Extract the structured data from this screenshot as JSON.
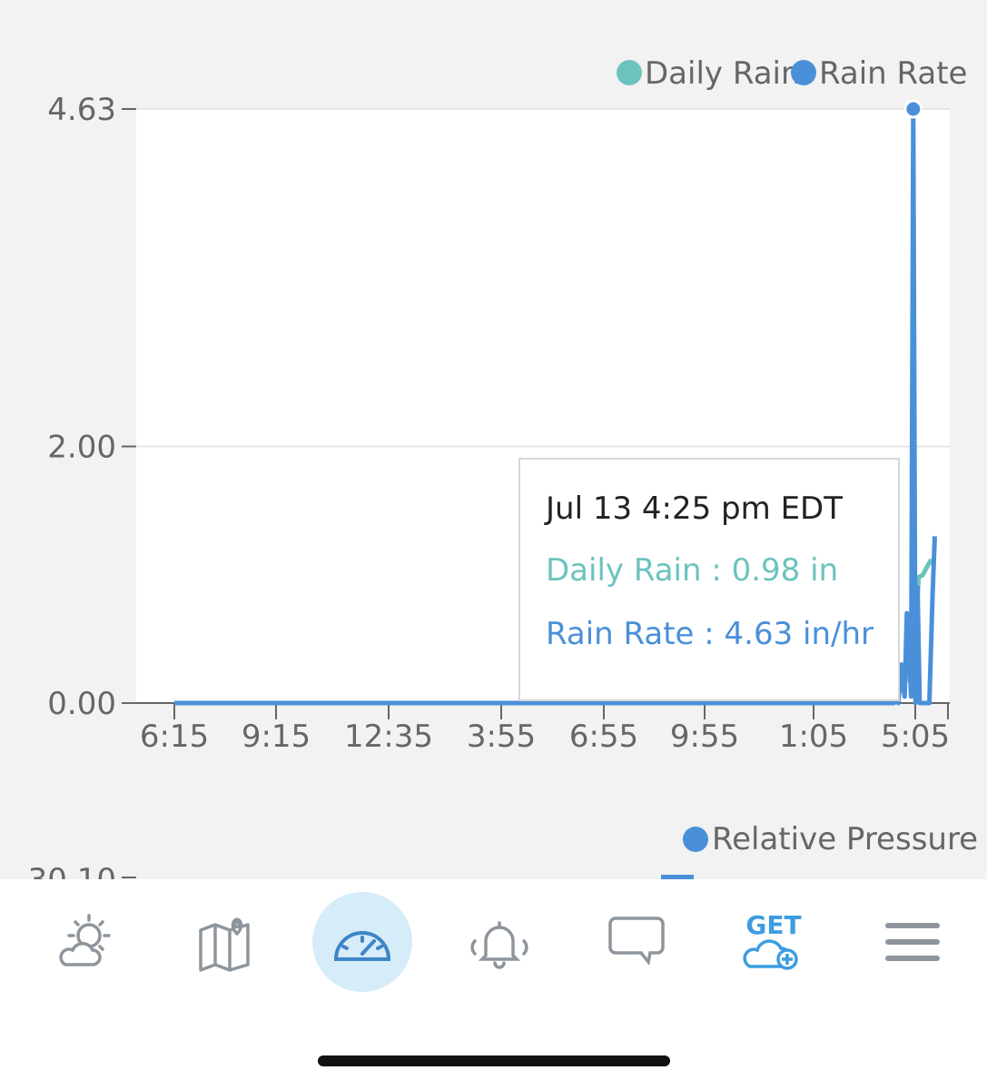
{
  "chart_data": [
    {
      "type": "line",
      "title": "",
      "legend": {
        "placement": "top-right",
        "items": [
          {
            "name": "Daily Rain",
            "color": "#6cc3bd"
          },
          {
            "name": "Rain Rate",
            "color": "#4a90d9"
          }
        ]
      },
      "y_ticks": [
        "4.63",
        "2.00",
        "0.00"
      ],
      "ylim": [
        0,
        4.63
      ],
      "x_ticks": [
        "6:15",
        "9:15",
        "12:35",
        "3:55",
        "6:55",
        "9:55",
        "1:05",
        "5:05"
      ],
      "grid": "horizontal",
      "series": [
        {
          "name": "Daily Rain",
          "color": "#6cc3bd",
          "x": [
            0,
            6.7,
            6.75,
            6.8,
            6.85,
            6.9,
            6.93,
            6.97,
            7.0,
            7.05
          ],
          "y": [
            0,
            0,
            0.08,
            0.15,
            0.3,
            0.5,
            0.98,
            1.0,
            1.05,
            1.12
          ]
        },
        {
          "name": "Rain Rate",
          "color": "#4a90d9",
          "x": [
            0,
            6.7,
            6.72,
            6.74,
            6.77,
            6.8,
            6.82,
            6.84,
            6.86,
            6.88,
            6.9,
            6.92,
            6.94,
            6.96,
            6.98,
            7.0,
            7.03,
            7.06,
            7.08
          ],
          "y": [
            0,
            0,
            0.35,
            0.0,
            0.3,
            0.05,
            0.7,
            0.4,
            0.05,
            4.63,
            0.0,
            0.9,
            0.0,
            0.0,
            0.0,
            0.0,
            0.0,
            0.85,
            1.3
          ]
        }
      ],
      "highlight": {
        "series": "Rain Rate",
        "x": 6.88,
        "y": 4.63
      }
    },
    {
      "type": "line",
      "legend": {
        "placement": "top-right",
        "items": [
          {
            "name": "Relative Pressure",
            "color": "#4a90d9"
          }
        ]
      },
      "y_ticks": [
        "30.10"
      ]
    }
  ],
  "tooltip": {
    "time": "Jul 13 4:25 pm EDT",
    "daily_rain": "Daily Rain : 0.98 in",
    "rain_rate": "Rain Rate : 4.63 in/hr"
  },
  "nav": {
    "items": [
      {
        "icon": "weather-icon"
      },
      {
        "icon": "map-icon"
      },
      {
        "icon": "dashboard-icon",
        "active": true
      },
      {
        "icon": "alerts-icon"
      },
      {
        "icon": "chat-icon"
      },
      {
        "icon": "get-cloud-icon",
        "label": "GET"
      },
      {
        "icon": "menu-icon"
      }
    ]
  },
  "colors": {
    "accent": "#4a90d9",
    "daily": "#6cc3bd",
    "active_bg": "#d6ecf8"
  }
}
